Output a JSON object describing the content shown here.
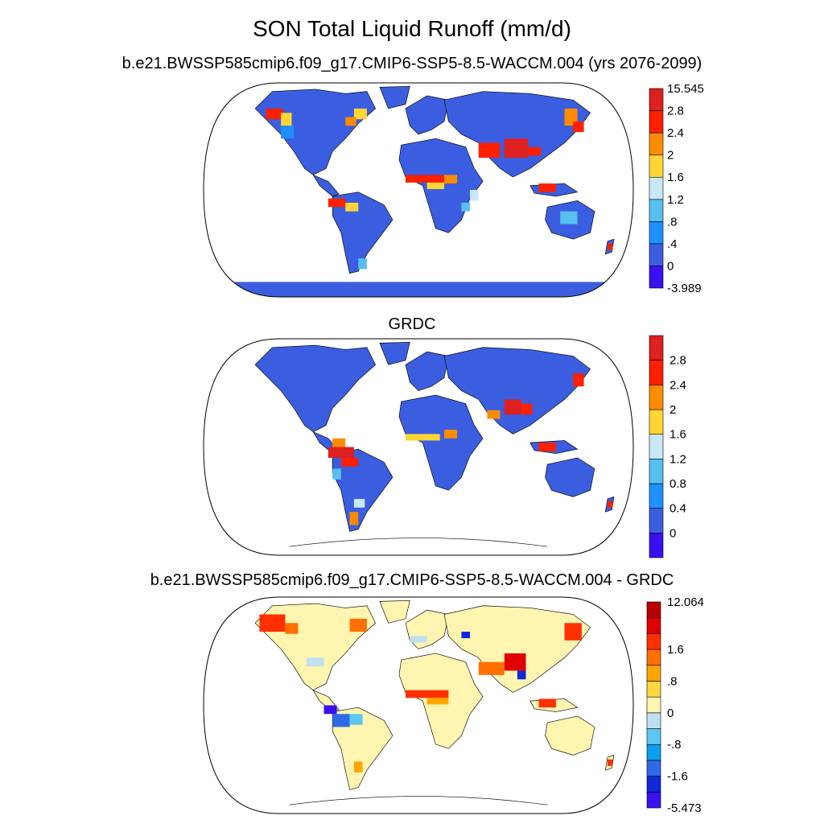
{
  "title": "SON Total Liquid Runoff (mm/d)",
  "panels": [
    {
      "title": "b.e21.BWSSP585cmip6.f09_g17.CMIP6-SSP5-8.5-WACCM.004 (yrs 2076-2099)",
      "colorbar": {
        "colors": [
          "#3a10f0",
          "#3b5ee0",
          "#1e90ff",
          "#58c0f0",
          "#c8e8f8",
          "#ffd633",
          "#ff8c00",
          "#ff2000",
          "#dd2020"
        ],
        "labels": [
          "-3.989",
          "0",
          ".4",
          ".8",
          "1.2",
          "1.6",
          "2",
          "2.4",
          "2.8",
          "15.545"
        ]
      }
    },
    {
      "title": "GRDC",
      "colorbar": {
        "colors": [
          "#3a10f0",
          "#3b5ee0",
          "#1e90ff",
          "#58c0f0",
          "#c8e8f8",
          "#ffd633",
          "#ff8c00",
          "#ff2000",
          "#dd2020"
        ],
        "labels": [
          "",
          "0",
          "0.4",
          "0.8",
          "1.2",
          "1.6",
          "2",
          "2.4",
          "2.8",
          ""
        ]
      }
    },
    {
      "title": "b.e21.BWSSP585cmip6.f09_g17.CMIP6-SSP5-8.5-WACCM.004 - GRDC",
      "colorbar": {
        "colors": [
          "#3a10f0",
          "#1028d8",
          "#2e6ae8",
          "#0aa0f0",
          "#5cc8f0",
          "#bfe0f0",
          "#fff5b0",
          "#ffd840",
          "#ffa500",
          "#ff7000",
          "#ff3000",
          "#e00000",
          "#b80000"
        ],
        "labels": [
          "-5.473",
          "",
          "-1.6",
          "",
          "-.8",
          "",
          "0",
          "",
          ".8",
          "",
          "1.6",
          "",
          "",
          "12.064"
        ]
      }
    }
  ]
}
